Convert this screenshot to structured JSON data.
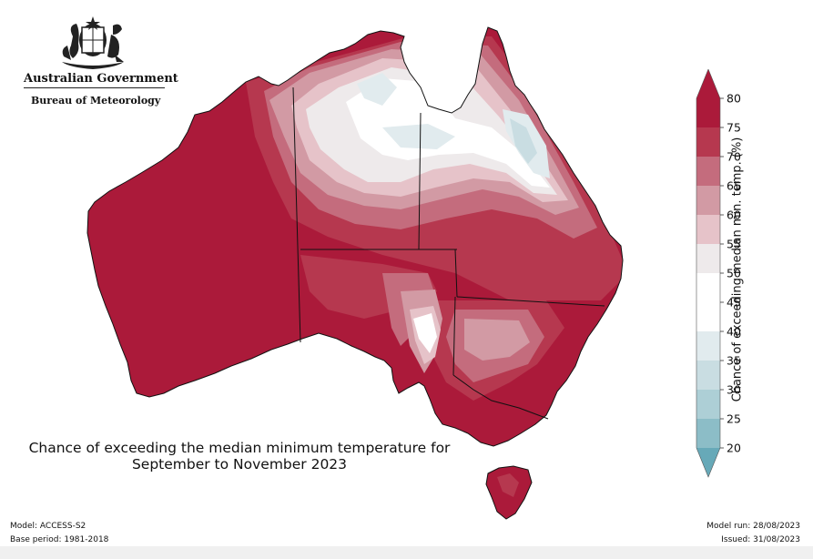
{
  "header": {
    "government": "Australian Government",
    "agency": "Bureau of Meteorology"
  },
  "title": {
    "line1": "Chance of exceeding the median minimum temperature for",
    "line2": "September to November 2023"
  },
  "colorbar": {
    "label": "Chance of exceeding median min. temp. (%)",
    "ticks": [
      "20",
      "25",
      "30",
      "35",
      "40",
      "45",
      "50",
      "55",
      "60",
      "65",
      "70",
      "75",
      "80"
    ],
    "colors": [
      "#67a9b8",
      "#8cbdc7",
      "#adcfd6",
      "#c9dde2",
      "#e1ebee",
      "#ffffff",
      "#ffffff",
      "#eeeaeb",
      "#e6c3c9",
      "#d29aa4",
      "#c46c7d",
      "#b6384f",
      "#ab1a3a"
    ]
  },
  "footer": {
    "model": "Model: ACCESS-S2",
    "base_period": "Base period: 1981-2018",
    "model_run": "Model run: 28/08/2023",
    "issued": "Issued: 31/08/2023"
  },
  "map": {
    "region": "Australia",
    "palette": {
      "deep": "#ab1a3a",
      "red": "#b6384f",
      "mid": "#c46c7d",
      "pink": "#d29aa4",
      "light": "#e6c3c9",
      "pale": "#eeeaeb",
      "white": "#ffffff",
      "blue1": "#e1ebee",
      "blue2": "#c9dde2"
    }
  }
}
